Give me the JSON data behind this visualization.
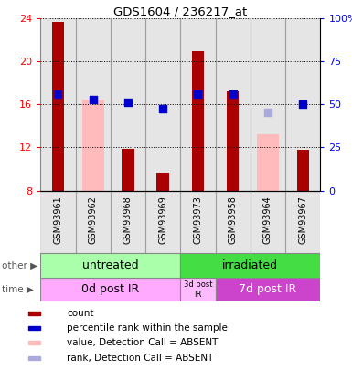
{
  "title": "GDS1604 / 236217_at",
  "samples": [
    "GSM93961",
    "GSM93962",
    "GSM93968",
    "GSM93969",
    "GSM93973",
    "GSM93958",
    "GSM93964",
    "GSM93967"
  ],
  "bar_values": [
    23.7,
    null,
    11.9,
    9.7,
    21.0,
    17.2,
    null,
    11.8
  ],
  "bar_absent_values": [
    null,
    16.5,
    null,
    null,
    null,
    null,
    13.2,
    null
  ],
  "dot_values": [
    17.0,
    16.5,
    16.2,
    15.6,
    17.0,
    17.0,
    null,
    16.0
  ],
  "dot_absent_values": [
    null,
    null,
    null,
    null,
    null,
    null,
    15.3,
    null
  ],
  "dot_present_color": "#0000cc",
  "dot_absent_color": "#aaaadd",
  "bar_present_color": "#aa0000",
  "bar_absent_color": "#ffbbbb",
  "ylim_left": [
    8,
    24
  ],
  "ylim_right": [
    0,
    100
  ],
  "yticks_left": [
    8,
    12,
    16,
    20,
    24
  ],
  "yticks_right": [
    0,
    25,
    50,
    75,
    100
  ],
  "ytick_labels_right": [
    "0",
    "25",
    "50",
    "75",
    "100%"
  ],
  "untreated_color": "#aaffaa",
  "irradiated_color": "#44dd44",
  "time_0d_color": "#ffaaff",
  "time_3d_color": "#ffbbff",
  "time_7d_color": "#cc44cc",
  "untreated_label": "untreated",
  "irradiated_label": "irradiated",
  "time_0d_label": "0d post IR",
  "time_3d_label": "3d post\nIR",
  "time_7d_label": "7d post IR",
  "other_row_label": "other",
  "time_row_label": "time",
  "label_color": "#555555",
  "legend_items": [
    {
      "label": "count",
      "color": "#aa0000"
    },
    {
      "label": "percentile rank within the sample",
      "color": "#0000cc"
    },
    {
      "label": "value, Detection Call = ABSENT",
      "color": "#ffbbbb"
    },
    {
      "label": "rank, Detection Call = ABSENT",
      "color": "#aaaadd"
    }
  ]
}
